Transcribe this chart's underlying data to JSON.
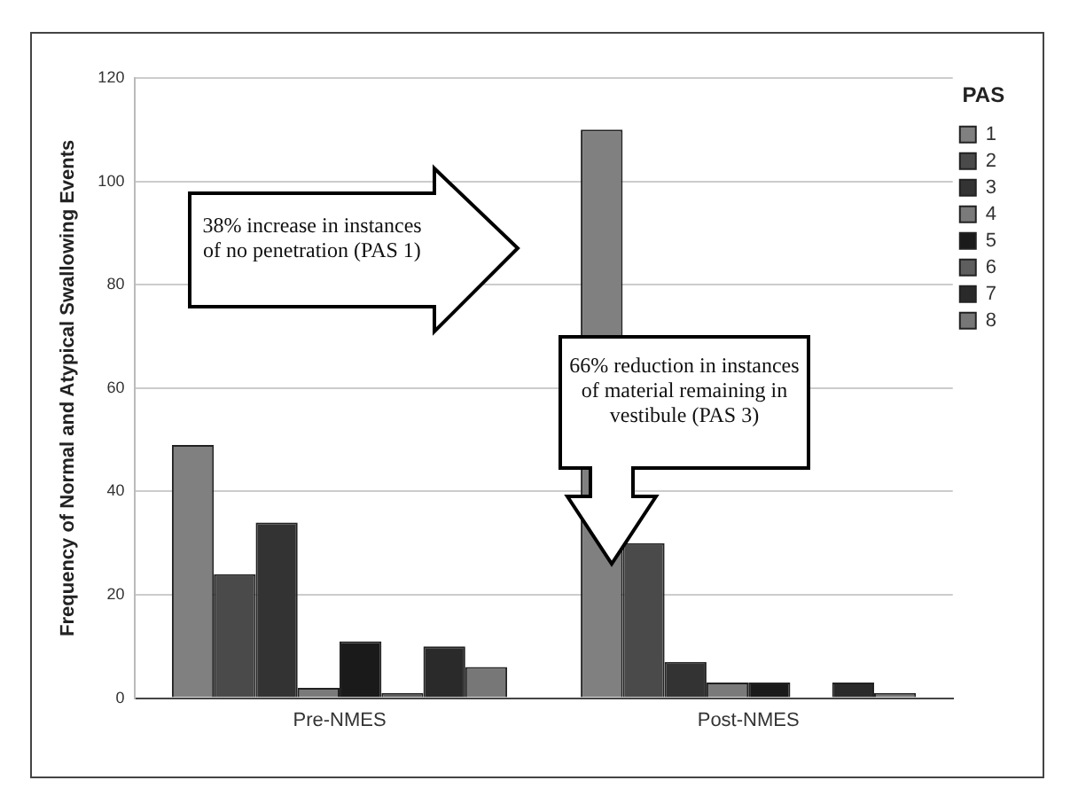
{
  "chart_data": {
    "type": "bar",
    "ylabel": "Frequency of Normal and Atypical Swallowing Events",
    "categories": [
      "Pre-NMES",
      "Post-NMES"
    ],
    "series": [
      {
        "name": "1",
        "color": "#808080",
        "values": [
          49,
          110
        ]
      },
      {
        "name": "2",
        "color": "#4a4a4a",
        "values": [
          24,
          30
        ]
      },
      {
        "name": "3",
        "color": "#333333",
        "values": [
          34,
          7
        ]
      },
      {
        "name": "4",
        "color": "#7a7a7a",
        "values": [
          2,
          3
        ]
      },
      {
        "name": "5",
        "color": "#1a1a1a",
        "values": [
          11,
          3
        ]
      },
      {
        "name": "6",
        "color": "#5e5e5e",
        "values": [
          1,
          0
        ]
      },
      {
        "name": "7",
        "color": "#2a2a2a",
        "values": [
          10,
          3
        ]
      },
      {
        "name": "8",
        "color": "#777777",
        "values": [
          6,
          1
        ]
      }
    ],
    "ylim": [
      0,
      120
    ],
    "yticks": [
      0,
      20,
      40,
      60,
      80,
      100,
      120
    ],
    "grid": "y",
    "legend": "right",
    "legend_title": "PAS",
    "annotations": [
      "38% increase in instances of no penetration (PAS 1)",
      "66% reduction in instances of material remaining in vestibule (PAS 3)"
    ]
  }
}
